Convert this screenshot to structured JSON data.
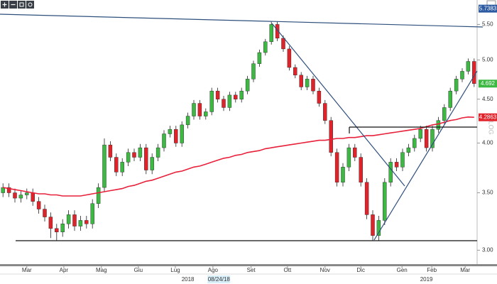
{
  "chart_data": {
    "type": "candlestick",
    "log_scale": true,
    "xlim": [
      0,
      80
    ],
    "ylim": [
      2.89,
      5.74
    ],
    "yticks": [
      {
        "value": 3,
        "label": "3.00"
      },
      {
        "value": 3.5,
        "label": "3.50"
      },
      {
        "value": 4,
        "label": "4.00"
      },
      {
        "value": 4.5,
        "label": "4.50"
      },
      {
        "value": 5,
        "label": "5.00"
      },
      {
        "value": 5.5,
        "label": "5.50"
      }
    ],
    "xticks": [
      {
        "value": 4.5,
        "label": "Mar"
      },
      {
        "value": 10.7,
        "label": "Apr"
      },
      {
        "value": 17,
        "label": "Mag"
      },
      {
        "value": 23.2,
        "label": "Giu"
      },
      {
        "value": 29.4,
        "label": "Lug"
      },
      {
        "value": 35.7,
        "label": "Ago"
      },
      {
        "value": 42.1,
        "label": "Set"
      },
      {
        "value": 48.2,
        "label": "Ott"
      },
      {
        "value": 54.5,
        "label": "Nov"
      },
      {
        "value": 60.5,
        "label": "Dic"
      },
      {
        "value": 67.4,
        "label": "Gen"
      },
      {
        "value": 72.4,
        "label": "Feb"
      },
      {
        "value": 78,
        "label": "Mar"
      }
    ],
    "year_labels": [
      {
        "value": 31.5,
        "label": "2018"
      },
      {
        "value": 36.7,
        "label": "08/24/18"
      },
      {
        "value": 71.5,
        "label": "2019"
      }
    ],
    "scale_label": "LOG",
    "up_color": "#3cb843",
    "down_color": "#e0232a",
    "candles": [
      [
        3.5,
        3.59,
        3.46,
        3.55
      ],
      [
        3.55,
        3.59,
        3.46,
        3.5
      ],
      [
        3.5,
        3.54,
        3.41,
        3.45
      ],
      [
        3.45,
        3.52,
        3.41,
        3.48
      ],
      [
        3.48,
        3.54,
        3.44,
        3.5
      ],
      [
        3.5,
        3.54,
        3.38,
        3.42
      ],
      [
        3.42,
        3.46,
        3.31,
        3.35
      ],
      [
        3.35,
        3.39,
        3.24,
        3.28
      ],
      [
        3.28,
        3.32,
        3.1,
        3.18
      ],
      [
        3.18,
        3.22,
        3.08,
        3.15
      ],
      [
        3.15,
        3.26,
        3.11,
        3.22
      ],
      [
        3.22,
        3.34,
        3.18,
        3.3
      ],
      [
        3.3,
        3.34,
        3.16,
        3.2
      ],
      [
        3.2,
        3.29,
        3.16,
        3.25
      ],
      [
        3.25,
        3.29,
        3.18,
        3.22
      ],
      [
        3.22,
        3.44,
        3.18,
        3.4
      ],
      [
        3.4,
        3.59,
        3.36,
        3.55
      ],
      [
        3.55,
        4.05,
        3.51,
        3.98
      ],
      [
        3.98,
        4.02,
        3.81,
        3.85
      ],
      [
        3.85,
        3.89,
        3.66,
        3.7
      ],
      [
        3.7,
        3.84,
        3.66,
        3.8
      ],
      [
        3.8,
        3.94,
        3.76,
        3.9
      ],
      [
        3.9,
        3.94,
        3.81,
        3.85
      ],
      [
        3.85,
        3.99,
        3.81,
        3.95
      ],
      [
        3.95,
        3.99,
        3.68,
        3.72
      ],
      [
        3.72,
        3.89,
        3.68,
        3.85
      ],
      [
        3.85,
        3.99,
        3.81,
        3.95
      ],
      [
        3.95,
        4.14,
        3.91,
        4.1
      ],
      [
        4.1,
        4.19,
        4.06,
        4.15
      ],
      [
        4.15,
        4.19,
        3.96,
        4.0
      ],
      [
        4.0,
        4.24,
        3.96,
        4.2
      ],
      [
        4.2,
        4.34,
        4.16,
        4.3
      ],
      [
        4.3,
        4.49,
        4.26,
        4.45
      ],
      [
        4.45,
        4.49,
        4.26,
        4.3
      ],
      [
        4.3,
        4.39,
        4.26,
        4.35
      ],
      [
        4.35,
        4.64,
        4.31,
        4.6
      ],
      [
        4.6,
        4.64,
        4.46,
        4.5
      ],
      [
        4.5,
        4.54,
        4.36,
        4.4
      ],
      [
        4.4,
        4.59,
        4.36,
        4.55
      ],
      [
        4.55,
        4.59,
        4.46,
        4.5
      ],
      [
        4.5,
        4.64,
        4.46,
        4.6
      ],
      [
        4.6,
        4.79,
        4.56,
        4.75
      ],
      [
        4.75,
        4.99,
        4.71,
        4.95
      ],
      [
        4.95,
        5.14,
        4.91,
        5.1
      ],
      [
        5.1,
        5.29,
        5.06,
        5.25
      ],
      [
        5.25,
        5.54,
        5.21,
        5.5
      ],
      [
        5.5,
        5.54,
        5.26,
        5.3
      ],
      [
        5.3,
        5.34,
        5.11,
        5.15
      ],
      [
        5.15,
        5.19,
        4.86,
        4.9
      ],
      [
        4.9,
        4.94,
        4.76,
        4.8
      ],
      [
        4.8,
        4.84,
        4.61,
        4.65
      ],
      [
        4.65,
        4.79,
        4.61,
        4.75
      ],
      [
        4.75,
        4.79,
        4.56,
        4.6
      ],
      [
        4.6,
        4.64,
        4.41,
        4.45
      ],
      [
        4.45,
        4.49,
        4.21,
        4.25
      ],
      [
        4.25,
        4.29,
        3.86,
        3.9
      ],
      [
        3.9,
        3.94,
        3.56,
        3.6
      ],
      [
        3.6,
        3.79,
        3.56,
        3.75
      ],
      [
        3.75,
        3.99,
        3.71,
        3.95
      ],
      [
        3.95,
        3.99,
        3.81,
        3.85
      ],
      [
        3.85,
        3.89,
        3.56,
        3.6
      ],
      [
        3.6,
        3.64,
        3.26,
        3.3
      ],
      [
        3.3,
        3.34,
        3.08,
        3.12
      ],
      [
        3.12,
        3.29,
        3.08,
        3.25
      ],
      [
        3.25,
        3.64,
        3.21,
        3.6
      ],
      [
        3.6,
        3.84,
        3.56,
        3.8
      ],
      [
        3.8,
        3.84,
        3.71,
        3.75
      ],
      [
        3.75,
        3.94,
        3.71,
        3.9
      ],
      [
        3.9,
        3.99,
        3.86,
        3.95
      ],
      [
        3.95,
        4.09,
        3.91,
        4.05
      ],
      [
        4.05,
        4.19,
        4.01,
        4.15
      ],
      [
        4.15,
        4.19,
        3.91,
        3.95
      ],
      [
        3.95,
        4.19,
        3.91,
        4.15
      ],
      [
        4.15,
        4.29,
        4.11,
        4.25
      ],
      [
        4.25,
        4.44,
        4.21,
        4.4
      ],
      [
        4.4,
        4.64,
        4.36,
        4.6
      ],
      [
        4.6,
        4.79,
        4.56,
        4.75
      ],
      [
        4.75,
        4.89,
        4.71,
        4.85
      ],
      [
        4.85,
        5.02,
        4.81,
        4.98
      ],
      [
        4.98,
        5.02,
        4.65,
        4.692
      ]
    ],
    "moving_average": {
      "color": "#e8203a",
      "values": [
        3.55,
        3.54,
        3.53,
        3.52,
        3.51,
        3.5,
        3.49,
        3.49,
        3.48,
        3.48,
        3.47,
        3.47,
        3.47,
        3.47,
        3.48,
        3.49,
        3.5,
        3.51,
        3.52,
        3.53,
        3.54,
        3.56,
        3.57,
        3.59,
        3.61,
        3.62,
        3.64,
        3.66,
        3.68,
        3.7,
        3.71,
        3.73,
        3.75,
        3.76,
        3.78,
        3.8,
        3.82,
        3.84,
        3.85,
        3.87,
        3.88,
        3.9,
        3.91,
        3.92,
        3.94,
        3.95,
        3.96,
        3.97,
        3.98,
        3.99,
        4.0,
        4.01,
        4.02,
        4.03,
        4.03,
        4.04,
        4.05,
        4.05,
        4.06,
        4.06,
        4.07,
        4.08,
        4.08,
        4.09,
        4.1,
        4.11,
        4.12,
        4.13,
        4.14,
        4.15,
        4.16,
        4.18,
        4.2,
        4.21,
        4.23,
        4.25,
        4.26,
        4.28,
        4.29,
        4.2863
      ]
    },
    "price_tags": [
      {
        "value": 5.7383,
        "color": "#2c5aa0"
      },
      {
        "value": 4.692,
        "color": "#3cb843"
      },
      {
        "value": 4.2863,
        "color": "#e0232a"
      }
    ]
  }
}
